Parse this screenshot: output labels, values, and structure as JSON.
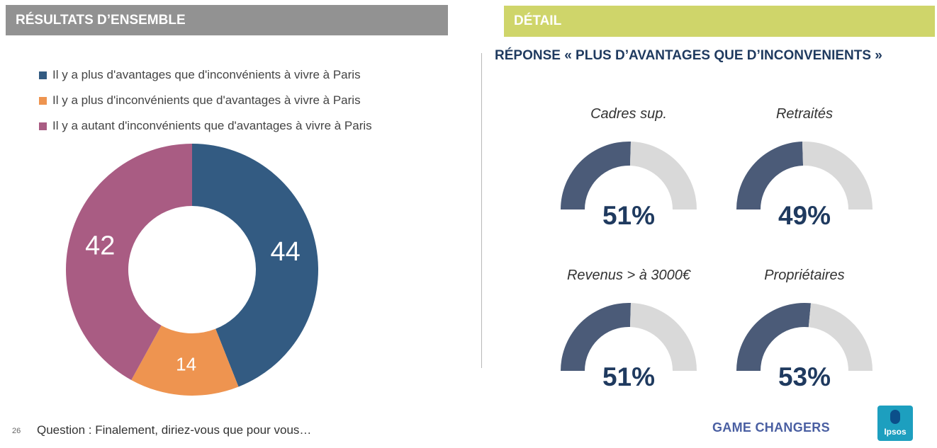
{
  "header": {
    "left_title": "RÉSULTATS D’ENSEMBLE",
    "right_title": "DÉTAIL"
  },
  "subtitle": "RÉPONSE « PLUS D’AVANTAGES QUE D’INCONVENIENTS »",
  "chart_data": [
    {
      "type": "pie",
      "variant": "donut",
      "title": "",
      "categories": [
        "Il y a plus d'avantages que d'inconvénients à vivre à Paris",
        "Il y a plus d'inconvénients que d'avantages à vivre à Paris",
        "Il y a autant d'inconvénients que d'avantages à vivre à Paris"
      ],
      "values": [
        44,
        14,
        42
      ],
      "colors": [
        "#335b82",
        "#ee9450",
        "#a95c83"
      ],
      "legend": "top-left"
    },
    {
      "type": "gauge",
      "title": "",
      "categories": [
        "Cadres sup.",
        "Retraités",
        "Revenus > à 3000€",
        "Propriétaires"
      ],
      "values": [
        51,
        49,
        51,
        53
      ],
      "value_labels": [
        "51%",
        "49%",
        "51%",
        "53%"
      ],
      "max": 100,
      "colors": {
        "filled": "#4b5b78",
        "remaining": "#d9d9d9"
      }
    }
  ],
  "footer": {
    "page_number": "26",
    "question": "Question : Finalement, diriez-vous que pour vous…",
    "brand": "GAME CHANGERS",
    "logo_text": "Ipsos"
  }
}
